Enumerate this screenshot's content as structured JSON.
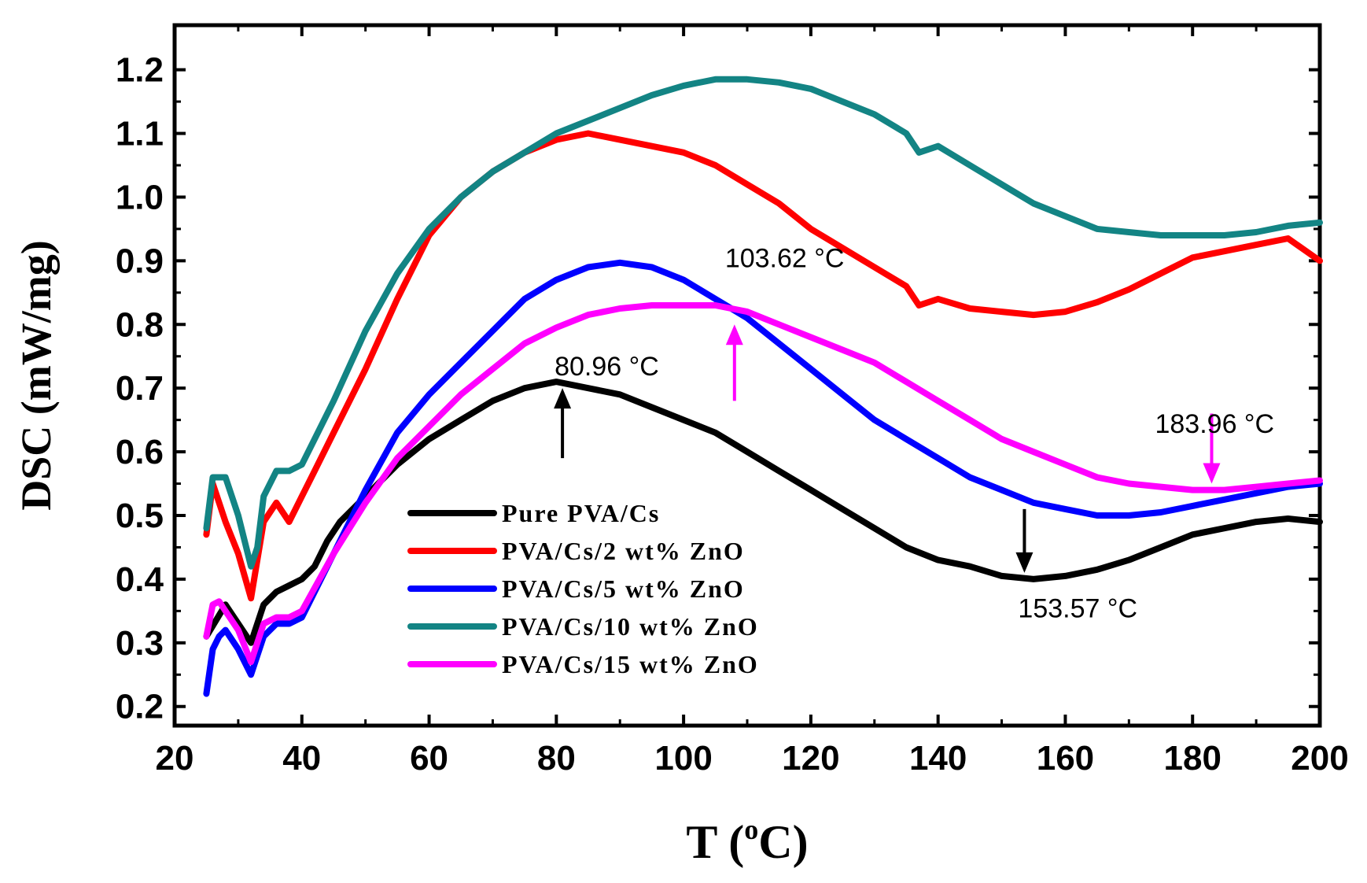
{
  "chart_data": {
    "type": "line",
    "title": "",
    "xlabel": {
      "main": "T (",
      "sup": "o",
      "unit": "C)"
    },
    "ylabel": "DSC (mW/mg)",
    "xlim": [
      20,
      200
    ],
    "ylim": [
      0.17,
      1.27
    ],
    "xticks": [
      20,
      40,
      60,
      80,
      100,
      120,
      140,
      160,
      180,
      200
    ],
    "yticks": [
      0.2,
      0.3,
      0.4,
      0.5,
      0.6,
      0.7,
      0.8,
      0.9,
      1.0,
      1.1,
      1.2
    ],
    "ytick_labels": [
      "0.2",
      "0.3",
      "0.4",
      "0.5",
      "0.6",
      "0.7",
      "0.8",
      "0.9",
      "1.0",
      "1.1",
      "1.2"
    ],
    "grid": false,
    "legend_position": "bottom-left",
    "series": [
      {
        "name": "Pure PVA/Cs",
        "color": "#000000",
        "x": [
          25,
          28,
          30,
          32,
          34,
          36,
          38,
          40,
          42,
          44,
          46,
          50,
          55,
          60,
          65,
          70,
          75,
          80,
          85,
          90,
          95,
          100,
          105,
          110,
          115,
          120,
          125,
          130,
          135,
          140,
          145,
          150,
          155,
          160,
          165,
          170,
          175,
          180,
          185,
          190,
          195,
          200
        ],
        "y": [
          0.31,
          0.36,
          0.33,
          0.3,
          0.36,
          0.38,
          0.39,
          0.4,
          0.42,
          0.46,
          0.49,
          0.53,
          0.58,
          0.62,
          0.65,
          0.68,
          0.7,
          0.71,
          0.7,
          0.69,
          0.67,
          0.65,
          0.63,
          0.6,
          0.57,
          0.54,
          0.51,
          0.48,
          0.45,
          0.43,
          0.42,
          0.405,
          0.4,
          0.405,
          0.415,
          0.43,
          0.45,
          0.47,
          0.48,
          0.49,
          0.495,
          0.49
        ]
      },
      {
        "name": "PVA/Cs/2 wt% ZnO",
        "color": "#ff0000",
        "x": [
          25,
          26,
          28,
          30,
          32,
          34,
          36,
          38,
          40,
          42,
          45,
          50,
          55,
          60,
          65,
          70,
          75,
          80,
          85,
          90,
          95,
          100,
          105,
          110,
          115,
          120,
          125,
          130,
          135,
          137,
          140,
          145,
          150,
          155,
          160,
          165,
          170,
          175,
          180,
          185,
          190,
          195,
          200
        ],
        "y": [
          0.47,
          0.55,
          0.49,
          0.44,
          0.37,
          0.49,
          0.52,
          0.49,
          0.53,
          0.57,
          0.63,
          0.73,
          0.84,
          0.94,
          1.0,
          1.04,
          1.07,
          1.09,
          1.1,
          1.09,
          1.08,
          1.07,
          1.05,
          1.02,
          0.99,
          0.95,
          0.92,
          0.89,
          0.86,
          0.83,
          0.84,
          0.825,
          0.82,
          0.815,
          0.82,
          0.835,
          0.855,
          0.88,
          0.905,
          0.915,
          0.925,
          0.935,
          0.9
        ]
      },
      {
        "name": "PVA/Cs/5 wt% ZnO",
        "color": "#0000ff",
        "x": [
          25,
          26,
          27,
          28,
          30,
          32,
          34,
          36,
          38,
          40,
          45,
          50,
          55,
          60,
          65,
          70,
          75,
          80,
          85,
          90,
          95,
          100,
          105,
          110,
          115,
          120,
          125,
          130,
          135,
          140,
          145,
          150,
          155,
          160,
          165,
          170,
          175,
          180,
          185,
          190,
          195,
          200
        ],
        "y": [
          0.22,
          0.29,
          0.31,
          0.32,
          0.29,
          0.25,
          0.31,
          0.33,
          0.33,
          0.34,
          0.44,
          0.54,
          0.63,
          0.69,
          0.74,
          0.79,
          0.84,
          0.87,
          0.89,
          0.897,
          0.89,
          0.87,
          0.84,
          0.81,
          0.77,
          0.73,
          0.69,
          0.65,
          0.62,
          0.59,
          0.56,
          0.54,
          0.52,
          0.51,
          0.5,
          0.5,
          0.505,
          0.515,
          0.525,
          0.535,
          0.545,
          0.55
        ]
      },
      {
        "name": "PVA/Cs/10 wt% ZnO",
        "color": "#138484",
        "x": [
          25,
          26,
          28,
          30,
          32,
          33,
          34,
          36,
          38,
          40,
          42,
          45,
          50,
          55,
          60,
          65,
          70,
          75,
          80,
          85,
          90,
          95,
          100,
          105,
          110,
          115,
          120,
          125,
          130,
          135,
          137,
          140,
          145,
          150,
          155,
          160,
          165,
          170,
          175,
          180,
          185,
          190,
          195,
          200
        ],
        "y": [
          0.48,
          0.56,
          0.56,
          0.5,
          0.42,
          0.45,
          0.53,
          0.57,
          0.57,
          0.58,
          0.62,
          0.68,
          0.79,
          0.88,
          0.95,
          1.0,
          1.04,
          1.07,
          1.1,
          1.12,
          1.14,
          1.16,
          1.175,
          1.185,
          1.185,
          1.18,
          1.17,
          1.15,
          1.13,
          1.1,
          1.07,
          1.08,
          1.05,
          1.02,
          0.99,
          0.97,
          0.95,
          0.945,
          0.94,
          0.94,
          0.94,
          0.945,
          0.955,
          0.96
        ]
      },
      {
        "name": "PVA/Cs/15 wt% ZnO",
        "color": "#ff00ff",
        "x": [
          25,
          26,
          27,
          28,
          30,
          32,
          34,
          36,
          38,
          40,
          45,
          50,
          55,
          60,
          65,
          70,
          75,
          80,
          85,
          90,
          95,
          100,
          105,
          110,
          115,
          120,
          125,
          130,
          135,
          140,
          145,
          150,
          155,
          160,
          165,
          170,
          175,
          180,
          185,
          190,
          195,
          200
        ],
        "y": [
          0.31,
          0.36,
          0.365,
          0.35,
          0.32,
          0.27,
          0.33,
          0.34,
          0.34,
          0.35,
          0.44,
          0.52,
          0.59,
          0.64,
          0.69,
          0.73,
          0.77,
          0.795,
          0.815,
          0.825,
          0.83,
          0.83,
          0.83,
          0.82,
          0.8,
          0.78,
          0.76,
          0.74,
          0.71,
          0.68,
          0.65,
          0.62,
          0.6,
          0.58,
          0.56,
          0.55,
          0.545,
          0.54,
          0.54,
          0.545,
          0.55,
          0.555
        ]
      }
    ],
    "annotations": [
      {
        "text": "80.96 °C",
        "x": 80.96,
        "arrow_from": 0.59,
        "arrow_to": 0.7,
        "color": "#000000"
      },
      {
        "text": "103.62 °C",
        "x": 108,
        "arrow_from": 0.68,
        "arrow_to": 0.8,
        "color": "#ff00ff"
      },
      {
        "text": "153.57 °C",
        "x": 153.57,
        "arrow_from": 0.51,
        "arrow_to": 0.41,
        "color": "#000000"
      },
      {
        "text": "183.96 °C",
        "x": 183.0,
        "arrow_from": 0.66,
        "arrow_to": 0.55,
        "color": "#ff00ff"
      }
    ]
  }
}
